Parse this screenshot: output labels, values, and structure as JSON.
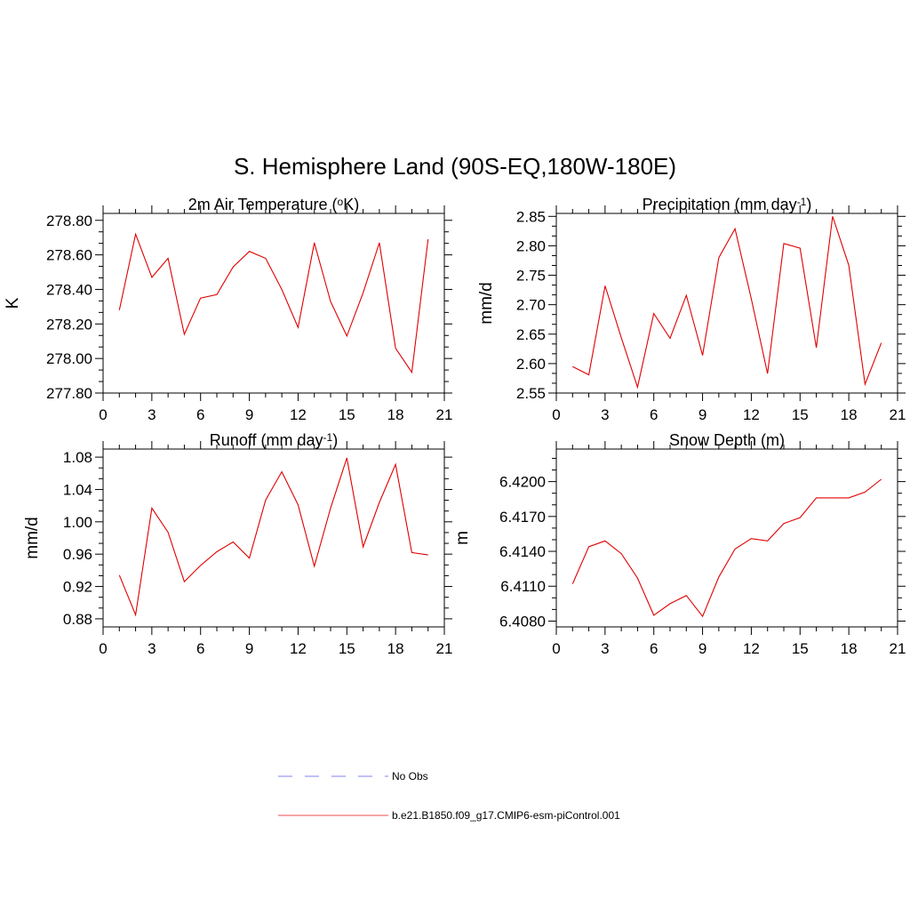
{
  "figure_title": "S. Hemisphere Land (90S-EQ,180W-180E)",
  "legend": {
    "items": [
      {
        "label": "No Obs",
        "color": "#9b9bf0",
        "style": "dashed"
      },
      {
        "label": "b.e21.B1850.f09_g17.CMIP6-esm-piControl.001",
        "color": "#f07070",
        "style": "solid"
      }
    ]
  },
  "chart_data": [
    {
      "type": "line",
      "title": "2m Air Temperature (",
      "title_sup": "o",
      "title_tail": "K)",
      "ylabel": "K",
      "xlim": [
        0,
        21
      ],
      "ylim": [
        277.8,
        278.84
      ],
      "xticks": [
        0,
        3,
        6,
        9,
        12,
        15,
        18,
        21
      ],
      "yticks": [
        277.8,
        278.0,
        278.2,
        278.4,
        278.6,
        278.8
      ],
      "ytick_labels": [
        "277.80",
        "278.00",
        "278.20",
        "278.40",
        "278.60",
        "278.80"
      ],
      "color": "#e00000",
      "x": [
        1,
        2,
        3,
        4,
        5,
        6,
        7,
        8,
        9,
        10,
        11,
        12,
        13,
        14,
        15,
        16,
        17,
        18,
        19,
        20
      ],
      "y": [
        278.28,
        278.72,
        278.47,
        278.58,
        278.14,
        278.35,
        278.37,
        278.53,
        278.62,
        278.58,
        278.4,
        278.18,
        278.67,
        278.33,
        278.13,
        278.38,
        278.67,
        278.06,
        277.92,
        278.69
      ]
    },
    {
      "type": "line",
      "title": "Precipitation (mm day",
      "title_sup": "-1",
      "title_tail": ")",
      "ylabel": "mm/d",
      "xlim": [
        0,
        21
      ],
      "ylim": [
        2.55,
        2.855
      ],
      "xticks": [
        0,
        3,
        6,
        9,
        12,
        15,
        18,
        21
      ],
      "yticks": [
        2.55,
        2.6,
        2.65,
        2.7,
        2.75,
        2.8,
        2.85
      ],
      "ytick_labels": [
        "2.55",
        "2.60",
        "2.65",
        "2.70",
        "2.75",
        "2.80",
        "2.85"
      ],
      "color": "#e00000",
      "x": [
        1,
        2,
        3,
        4,
        5,
        6,
        7,
        8,
        9,
        10,
        11,
        12,
        13,
        14,
        15,
        16,
        17,
        18,
        19,
        20
      ],
      "y": [
        2.595,
        2.581,
        2.732,
        2.644,
        2.56,
        2.685,
        2.643,
        2.716,
        2.614,
        2.78,
        2.829,
        2.71,
        2.583,
        2.804,
        2.796,
        2.627,
        2.85,
        2.767,
        2.565,
        2.635
      ]
    },
    {
      "type": "line",
      "title": "Runoff (mm day",
      "title_sup": "-1",
      "title_tail": ")",
      "ylabel": "mm/d",
      "xlim": [
        0,
        21
      ],
      "ylim": [
        0.87,
        1.09
      ],
      "xticks": [
        0,
        3,
        6,
        9,
        12,
        15,
        18,
        21
      ],
      "yticks": [
        0.88,
        0.92,
        0.96,
        1.0,
        1.04,
        1.08
      ],
      "ytick_labels": [
        "0.88",
        "0.92",
        "0.96",
        "1.00",
        "1.04",
        "1.08"
      ],
      "color": "#e00000",
      "x": [
        1,
        2,
        3,
        4,
        5,
        6,
        7,
        8,
        9,
        10,
        11,
        12,
        13,
        14,
        15,
        16,
        17,
        18,
        19,
        20
      ],
      "y": [
        0.934,
        0.885,
        1.017,
        0.987,
        0.926,
        0.946,
        0.963,
        0.975,
        0.955,
        1.027,
        1.062,
        1.021,
        0.945,
        1.017,
        1.079,
        0.969,
        1.024,
        1.071,
        0.962,
        0.959
      ]
    },
    {
      "type": "line",
      "title": "Snow Depth (m)",
      "title_sup": "",
      "title_tail": "",
      "ylabel": "m",
      "xlim": [
        0,
        21
      ],
      "ylim": [
        6.4075,
        6.4228
      ],
      "xticks": [
        0,
        3,
        6,
        9,
        12,
        15,
        18,
        21
      ],
      "yticks": [
        6.408,
        6.411,
        6.414,
        6.417,
        6.42
      ],
      "ytick_labels": [
        "6.4080",
        "6.4110",
        "6.4140",
        "6.4170",
        "6.4200"
      ],
      "color": "#e00000",
      "x": [
        1,
        2,
        3,
        4,
        5,
        6,
        7,
        8,
        9,
        10,
        11,
        12,
        13,
        14,
        15,
        16,
        17,
        18,
        19,
        20
      ],
      "y": [
        6.4112,
        6.4144,
        6.4149,
        6.4138,
        6.4117,
        6.4085,
        6.4095,
        6.4102,
        6.4084,
        6.4118,
        6.4142,
        6.4151,
        6.4149,
        6.4164,
        6.4169,
        6.4186,
        6.4186,
        6.4186,
        6.4191,
        6.4202
      ]
    }
  ]
}
